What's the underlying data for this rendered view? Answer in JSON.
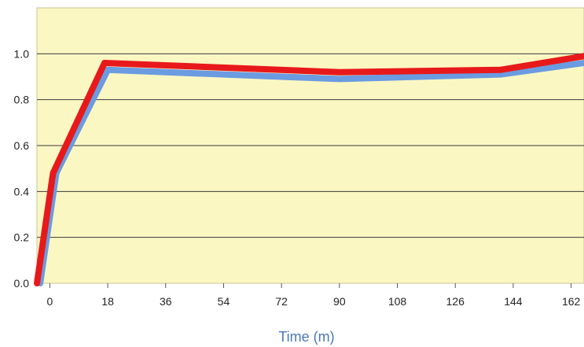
{
  "chart_data": {
    "type": "line",
    "title": "",
    "xlabel": "Time (m)",
    "ylabel": "",
    "xlim": [
      -4,
      166
    ],
    "ylim": [
      0.0,
      1.2
    ],
    "xticks": [
      0,
      18,
      36,
      54,
      72,
      90,
      108,
      126,
      144,
      162
    ],
    "yticks": [
      0.0,
      0.2,
      0.4,
      0.6,
      0.8,
      1.0
    ],
    "xtick_labels": [
      "0",
      "18",
      "36",
      "54",
      "72",
      "90",
      "108",
      "126",
      "144",
      "162"
    ],
    "ytick_labels": [
      "0.0",
      "0.2",
      "0.4",
      "0.6",
      "0.8",
      "1.0"
    ],
    "grid": "horizontal",
    "background": "#fbf7c3",
    "series": [
      {
        "color": "#6b9be0",
        "x": [
          -3,
          2,
          18,
          90,
          140,
          166
        ],
        "y": [
          0.0,
          0.48,
          0.93,
          0.89,
          0.91,
          0.96
        ]
      },
      {
        "color": "#e8191a",
        "x": [
          -4,
          1,
          17,
          90,
          140,
          166
        ],
        "y": [
          0.0,
          0.48,
          0.96,
          0.92,
          0.93,
          0.99
        ]
      }
    ]
  }
}
